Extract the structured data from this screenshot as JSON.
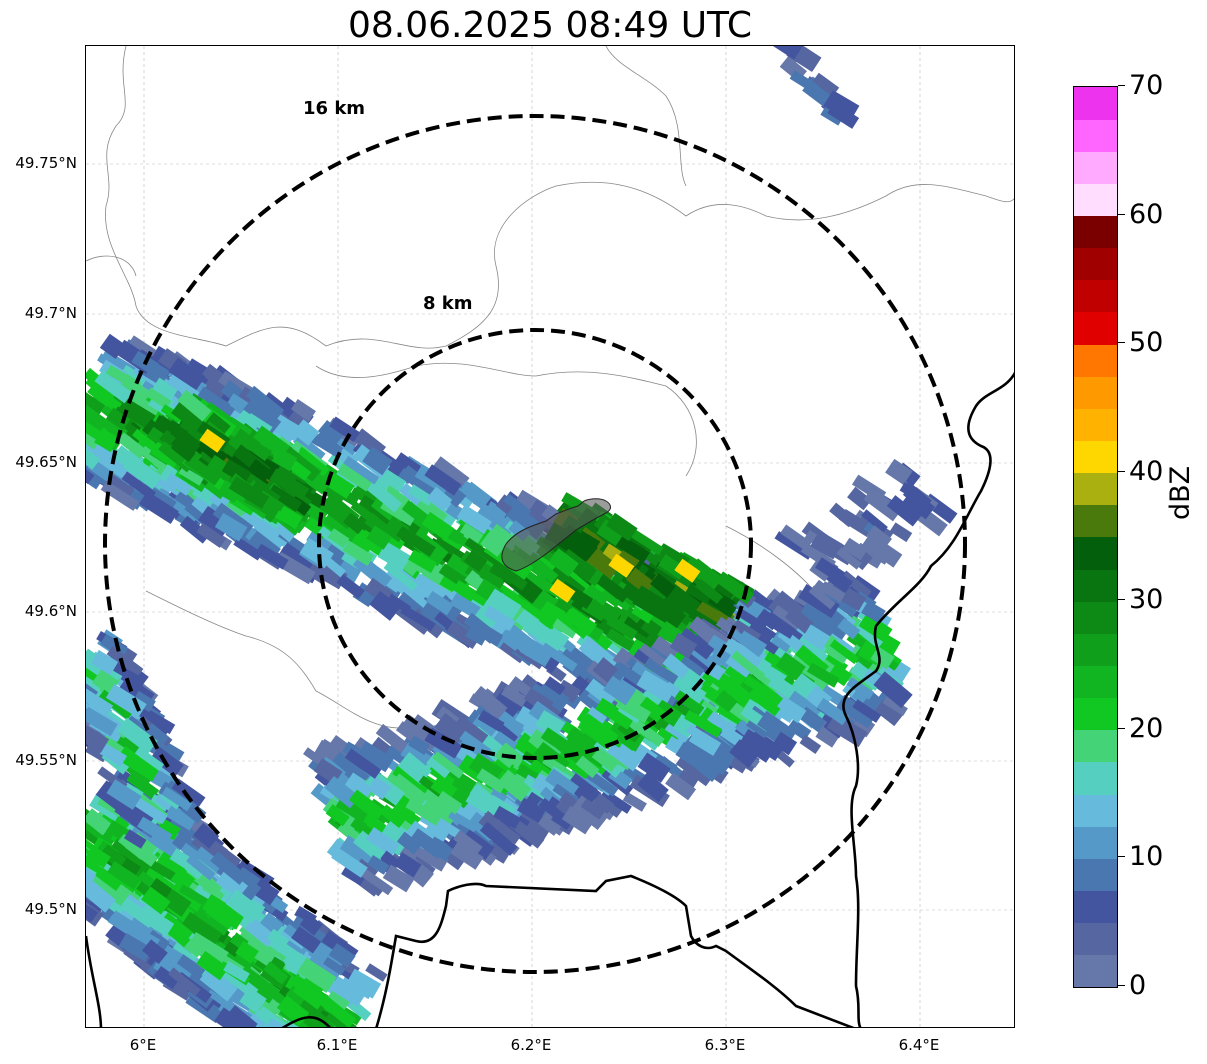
{
  "title": "08.06.2025 08:49 UTC",
  "map": {
    "lat_labels": [
      "49.75°N",
      "49.7°N",
      "49.65°N",
      "49.6°N",
      "49.55°N",
      "49.5°N"
    ],
    "lon_labels": [
      "6°E",
      "6.1°E",
      "6.2°E",
      "6.3°E",
      "6.4°E"
    ],
    "range_rings": [
      {
        "label": "16 km",
        "radius_km": 16
      },
      {
        "label": "8 km",
        "radius_km": 8
      }
    ],
    "ring_style": "dashed",
    "grid": true,
    "colors": {
      "ring": "#000000",
      "border": "#000000",
      "region": "#888888",
      "city_fill": "#5a5a5a"
    }
  },
  "colorbar": {
    "label": "dBZ",
    "ticks": [
      "0",
      "10",
      "20",
      "30",
      "40",
      "50",
      "60",
      "70"
    ],
    "colors": [
      "#6677aa",
      "#5566a0",
      "#4455a0",
      "#4a77b0",
      "#5599c8",
      "#66bbdd",
      "#55d0c0",
      "#44d477",
      "#11c822",
      "#11b522",
      "#109f1a",
      "#0c8a15",
      "#087510",
      "#045f0c",
      "#4a7a0c",
      "#aab010",
      "#ffd700",
      "#ffb200",
      "#ff9900",
      "#ff7700",
      "#e00000",
      "#c00000",
      "#a00000",
      "#7a0000",
      "#ffddff",
      "#ffaaff",
      "#ff66ff",
      "#ee33ee"
    ]
  }
}
